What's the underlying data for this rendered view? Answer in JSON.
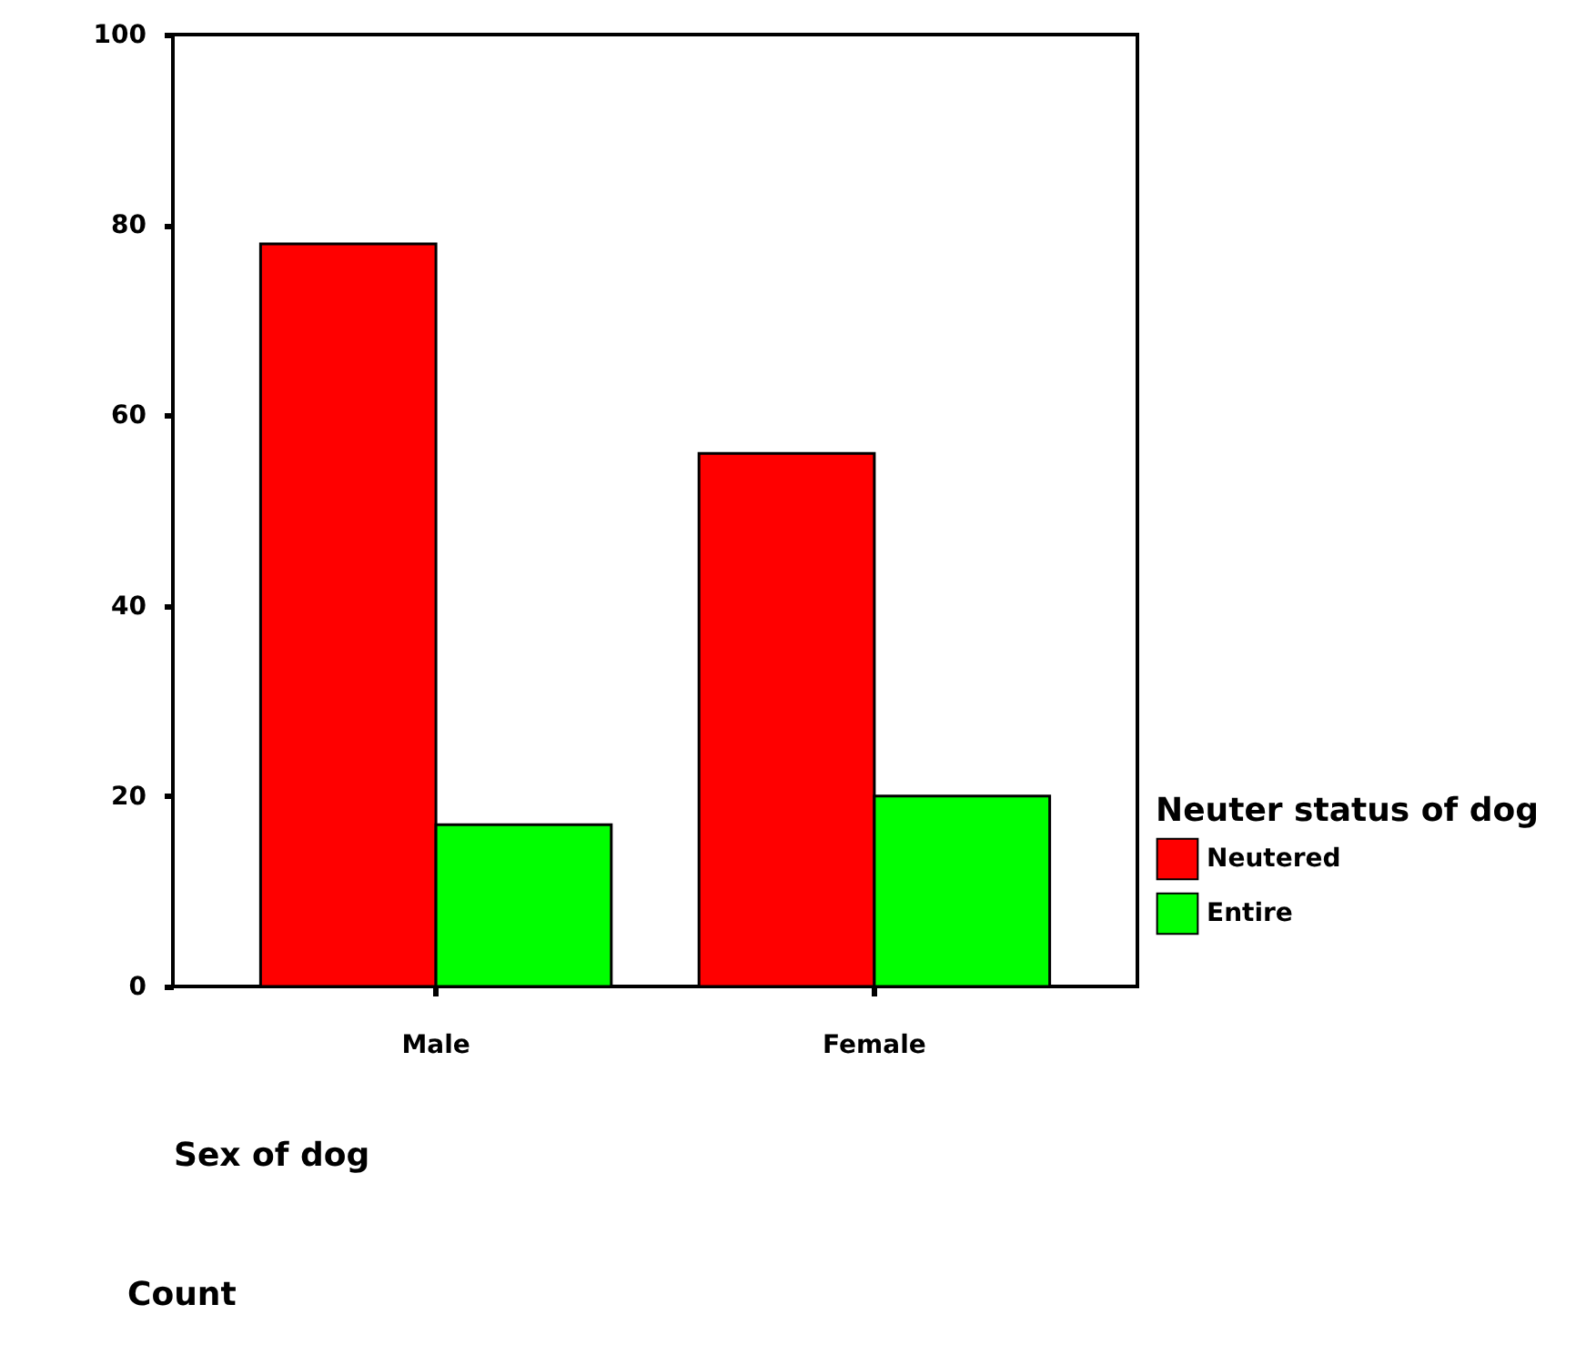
{
  "chart_data": {
    "type": "bar",
    "categories": [
      "Male",
      "Female"
    ],
    "xlabel": "Sex of dog",
    "annotations": [
      "Count"
    ],
    "legend_title": "Neuter status of dog",
    "series": [
      {
        "name": "Neutered",
        "color": "#ff0000",
        "values": [
          78,
          56
        ]
      },
      {
        "name": "Entire",
        "color": "#00ff00",
        "values": [
          17,
          20
        ]
      }
    ],
    "ylim": [
      0,
      100
    ],
    "yticks": [
      0,
      20,
      40,
      60,
      80,
      100
    ],
    "grid": false,
    "legend": "right"
  }
}
